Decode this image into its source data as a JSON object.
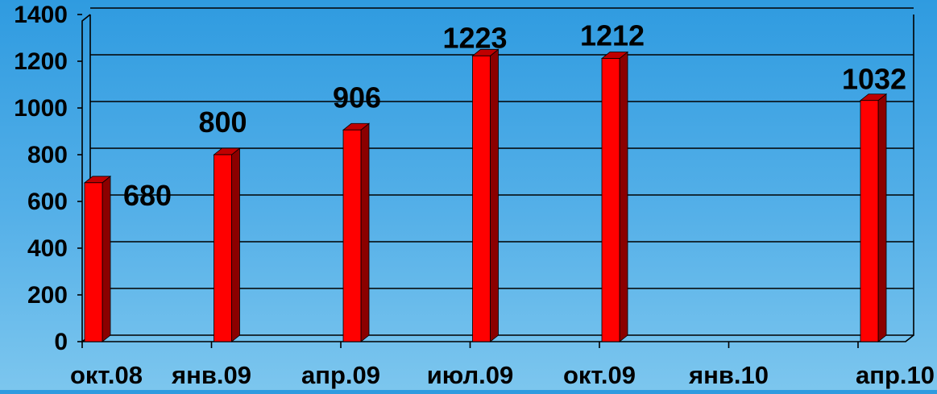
{
  "chart_data": {
    "type": "bar",
    "title": "",
    "xlabel": "",
    "ylabel": "",
    "categories": [
      "окт.08",
      "янв.09",
      "апр.09",
      "июл.09",
      "окт.09",
      "янв.10",
      "апр.10"
    ],
    "points": [
      {
        "date": "окт.08",
        "value": 680,
        "label": "680"
      },
      {
        "date": "янв.09",
        "value": 800,
        "label": "800"
      },
      {
        "date": "апр.09",
        "value": 906,
        "label": "906"
      },
      {
        "date": "июл.09",
        "value": 1223,
        "label": "1223"
      },
      {
        "date": "окт.09",
        "value": 1212,
        "label": "1212"
      },
      {
        "date": "апр.10",
        "value": 1032,
        "label": "1032"
      }
    ],
    "ylim": [
      0,
      1400
    ],
    "yticks": [
      "0",
      "200",
      "400",
      "600",
      "800",
      "1000",
      "1200",
      "1400"
    ],
    "grid": true,
    "colors": {
      "bar_front": "#ff0000",
      "bar_side": "#8b0000",
      "bar_top": "#c00000"
    }
  }
}
